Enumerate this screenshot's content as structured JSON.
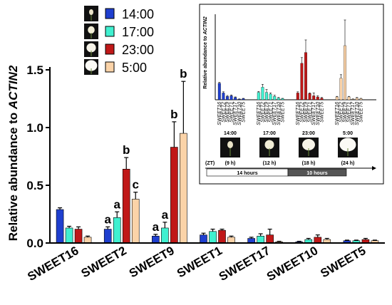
{
  "chart_data": {
    "type": "bar",
    "ylabel": "Relative abundance to ACTIN2",
    "ylim": [
      0,
      1.5
    ],
    "yticks": [
      "0.0",
      "0.5",
      "1.0",
      "1.5"
    ],
    "categories": [
      "SWEET16",
      "SWEET2",
      "SWEET9",
      "SWEET1",
      "SWEET17",
      "SWEET10",
      "SWEET5"
    ],
    "series": [
      {
        "name": "14:00",
        "color": "#1f3fcf",
        "values": [
          0.29,
          0.12,
          0.06,
          0.07,
          0.04,
          0.01,
          0.02
        ],
        "errors": [
          0.015,
          0.02,
          0.015,
          0.015,
          0.01,
          0.005,
          0.005
        ],
        "letters": [
          "",
          "a",
          "a",
          "",
          "",
          "",
          ""
        ]
      },
      {
        "name": "17:00",
        "color": "#40f0d0",
        "values": [
          0.13,
          0.22,
          0.13,
          0.1,
          0.06,
          0.03,
          0.02
        ],
        "errors": [
          0.015,
          0.05,
          0.05,
          0.02,
          0.02,
          0.01,
          0.005
        ],
        "letters": [
          "",
          "a",
          "a",
          "",
          "",
          "",
          ""
        ]
      },
      {
        "name": "23:00",
        "color": "#c01818",
        "values": [
          0.12,
          0.64,
          0.83,
          0.11,
          0.07,
          0.05,
          0.03
        ],
        "errors": [
          0.02,
          0.1,
          0.22,
          0.01,
          0.05,
          0.02,
          0.01
        ],
        "letters": [
          "",
          "b",
          "b",
          "",
          "",
          "",
          ""
        ]
      },
      {
        "name": "5:00",
        "color": "#fbd3a8",
        "values": [
          0.05,
          0.38,
          0.95,
          0.05,
          0.01,
          0.03,
          0.02
        ],
        "errors": [
          0.01,
          0.06,
          0.45,
          0.01,
          0.005,
          0.01,
          0.005
        ],
        "letters": [
          "",
          "c",
          "b",
          "",
          "",
          "",
          ""
        ]
      }
    ]
  },
  "inset": {
    "ylabel_prefix": "Relative abundance to ",
    "ylabel_gene": "ACTIN2",
    "gene_labels": [
      "SWEET16",
      "SWEET2",
      "SWEET9",
      "SWEET1",
      "SWEET17",
      "SWEET10",
      "SWEET5"
    ],
    "times": [
      "14:00",
      "17:00",
      "23:00",
      "5:00"
    ],
    "zt_label": "(ZT)",
    "zt_values": [
      "(9 h)",
      "(12 h)",
      "(18 h)",
      "(24 h)"
    ],
    "day_label": "14 hours",
    "night_label": "10 hours"
  }
}
